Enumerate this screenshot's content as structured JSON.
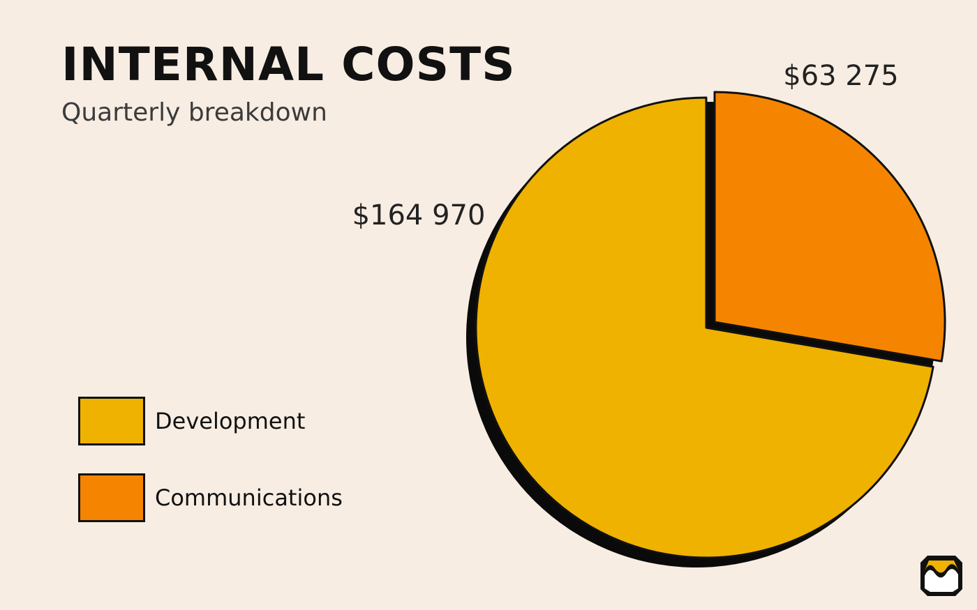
{
  "chart_data": {
    "type": "pie",
    "title": "INTERNAL COSTS",
    "subtitle": "Quarterly breakdown",
    "slices": [
      {
        "name": "Development",
        "value": 164970,
        "label": "$164 970",
        "color": "#f0b200"
      },
      {
        "name": "Communications",
        "value": 63275,
        "label": "$63 275",
        "color": "#f58500"
      }
    ],
    "legend_position": "bottom-left"
  },
  "logo": {
    "name": "brand-logo"
  }
}
